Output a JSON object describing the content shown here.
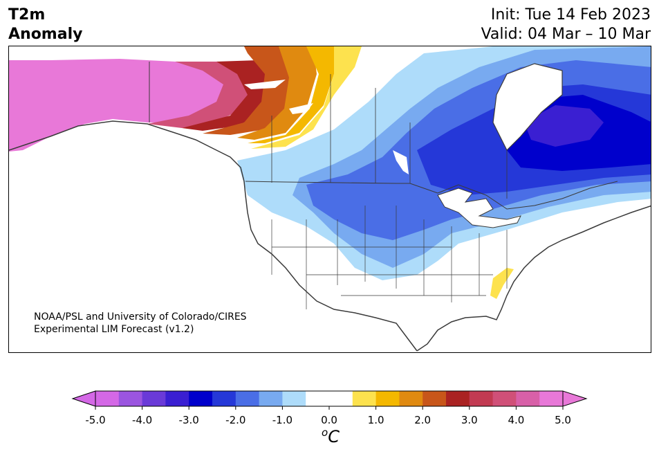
{
  "title": {
    "line1": "T2m",
    "line2": "Anomaly"
  },
  "subtitle": {
    "init": "Init: Tue 14 Feb 2023",
    "valid": "Valid: 04 Mar – 10 Mar"
  },
  "credit": {
    "line1": "NOAA/PSL and University of Colorado/CIRES",
    "line2": "Experimental LIM Forecast (v1.2)"
  },
  "colorbar": {
    "unit_base": "C",
    "unit_sup": "o",
    "tick_labels": [
      "-5.0",
      "-4.0",
      "-3.0",
      "-2.0",
      "-1.0",
      "0.0",
      "1.0",
      "2.0",
      "3.0",
      "4.0",
      "5.0"
    ],
    "colors": [
      "#d468e6",
      "#9b55e0",
      "#6a3ad8",
      "#3a1fd2",
      "#0000cc",
      "#2538d8",
      "#4a6ee6",
      "#78aaf0",
      "#aedcfa",
      "#ffffff",
      "#ffffff",
      "#fde24e",
      "#f4b800",
      "#e08a10",
      "#c8561a",
      "#aa2222",
      "#c23a52",
      "#d05078",
      "#d860a8",
      "#e878d8"
    ],
    "min_color": "#d468e6",
    "max_color": "#e878d8"
  },
  "map_colors": {
    "pink": "#e878d8",
    "magenta": "#d05078",
    "crimson": "#aa2222",
    "red": "#c8561a",
    "orange": "#e08a10",
    "gold": "#f4b800",
    "yellow": "#fde24e",
    "lightblue": "#aedcfa",
    "skyblue": "#78aaf0",
    "midblue": "#4a6ee6",
    "blue": "#2538d8",
    "darkblue": "#0000cc",
    "indigo": "#3a1fd2",
    "border": "#3a3a3a"
  }
}
